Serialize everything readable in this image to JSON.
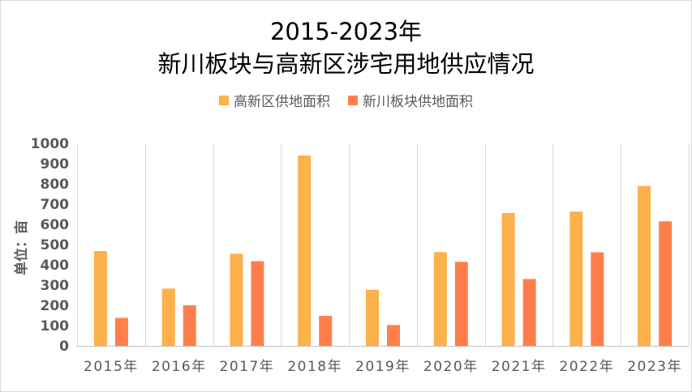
{
  "title_line1": "2015-2023年",
  "title_line2": "新川板块与高新区涉宅用地供应情况",
  "chart_data": {
    "type": "bar",
    "categories": [
      "2015年",
      "2016年",
      "2017年",
      "2018年",
      "2019年",
      "2020年",
      "2021年",
      "2022年",
      "2023年"
    ],
    "series": [
      {
        "name": "高新区供地面积",
        "color": "#FDB14A",
        "values": [
          468,
          283,
          455,
          940,
          277,
          463,
          656,
          663,
          790
        ]
      },
      {
        "name": "新川板块供地面积",
        "color": "#FF7F4C",
        "values": [
          138,
          200,
          418,
          148,
          103,
          415,
          330,
          462,
          615
        ]
      }
    ],
    "ylabel": "单位：亩",
    "ylim": [
      0,
      1000
    ],
    "yticks": [
      0,
      100,
      200,
      300,
      400,
      500,
      600,
      700,
      800,
      900,
      1000
    ],
    "grid": "vertical category separators",
    "legend_position": "top-center"
  }
}
